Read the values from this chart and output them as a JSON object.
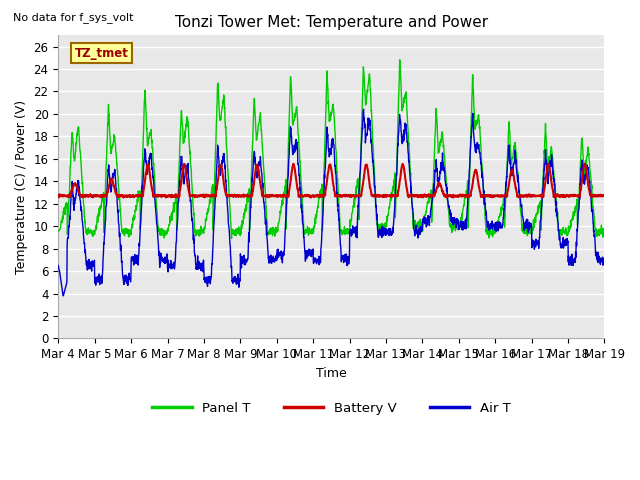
{
  "title": "Tonzi Tower Met: Temperature and Power",
  "top_left_text": "No data for f_sys_volt",
  "ylabel": "Temperature (C) / Power (V)",
  "xlabel": "Time",
  "ylim": [
    0,
    27
  ],
  "yticks": [
    0,
    2,
    4,
    6,
    8,
    10,
    12,
    14,
    16,
    18,
    20,
    22,
    24,
    26
  ],
  "xtick_labels": [
    "Mar 4",
    "Mar 5",
    "Mar 6",
    "Mar 7",
    "Mar 8",
    "Mar 9",
    "Mar 10",
    "Mar 11",
    "Mar 12",
    "Mar 13",
    "Mar 14",
    "Mar 15",
    "Mar 16",
    "Mar 17",
    "Mar 18",
    "Mar 19"
  ],
  "legend_entries": [
    "Panel T",
    "Battery V",
    "Air T"
  ],
  "legend_colors": [
    "#00cc00",
    "#cc0000",
    "#0000cc"
  ],
  "line_colors": {
    "panel": "#00cc00",
    "battery": "#cc0000",
    "air": "#0000cc"
  },
  "annotation_text": "TZ_tmet",
  "annotation_bg": "#ffff99",
  "annotation_border": "#996600",
  "plot_bg": "#e8e8e8",
  "grid_color": "#ffffff",
  "title_fontsize": 11,
  "axis_fontsize": 9,
  "tick_fontsize": 8.5
}
